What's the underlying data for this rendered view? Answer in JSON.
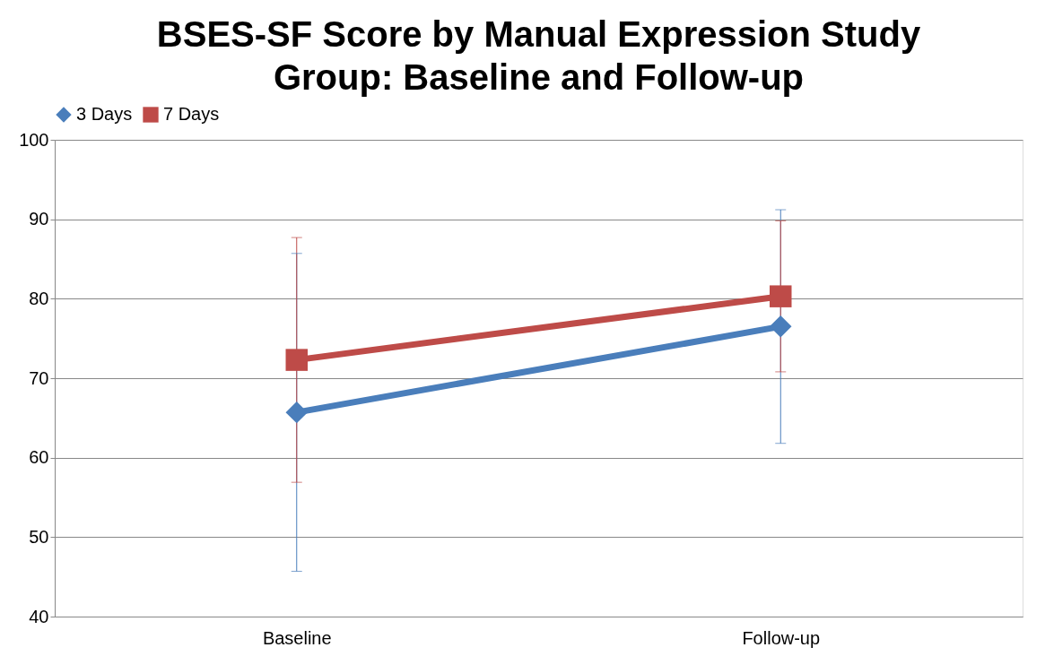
{
  "chart_data": {
    "type": "line",
    "title": "BSES-SF Score by Manual Expression Study Group: Baseline and Follow-up",
    "categories": [
      "Baseline",
      "Follow-up"
    ],
    "series": [
      {
        "name": "3 Days",
        "color": "#4a7ebb",
        "marker": "diamond",
        "values": [
          65.7,
          76.5
        ],
        "errors": [
          20,
          14.7
        ]
      },
      {
        "name": "7 Days",
        "color": "#be4b48",
        "marker": "square",
        "values": [
          72.3,
          80.3
        ],
        "errors": [
          15.4,
          9.5
        ]
      }
    ],
    "ylim": [
      40,
      100
    ],
    "yticks": [
      40,
      50,
      60,
      70,
      80,
      90,
      100
    ],
    "grid": "y",
    "legend": "top",
    "line_style": "solid"
  }
}
